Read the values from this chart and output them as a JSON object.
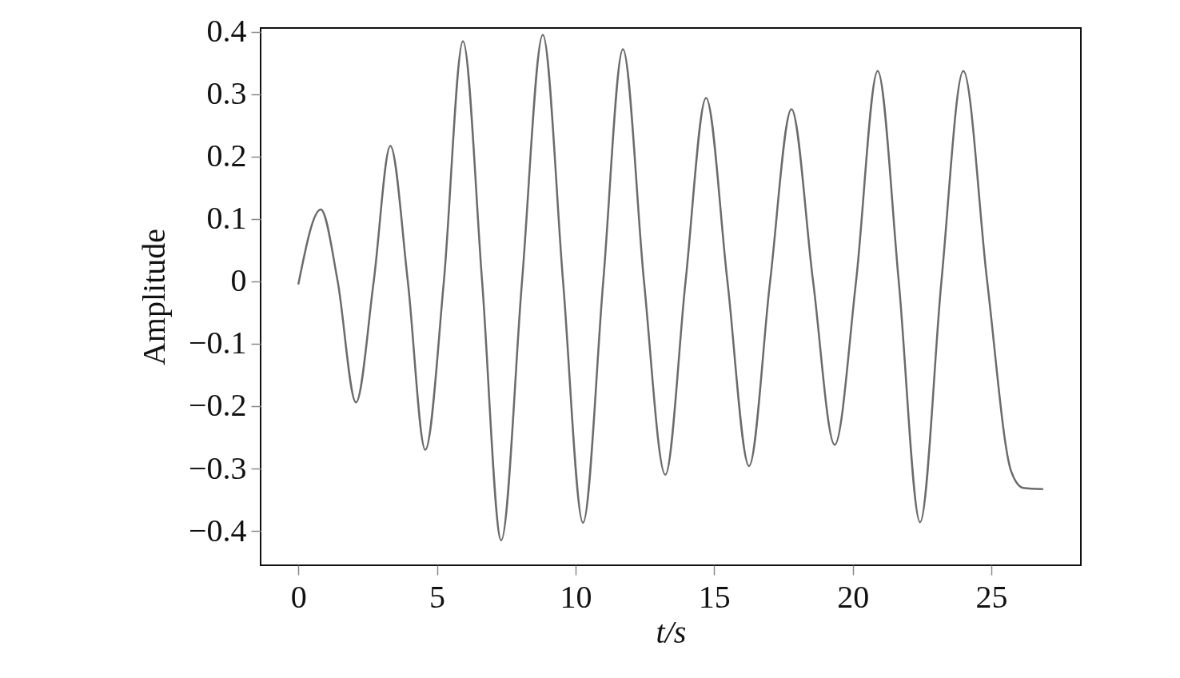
{
  "chart_data": {
    "type": "line",
    "xlabel": "t/s",
    "ylabel": "Amplitude",
    "x": [
      0,
      0.81,
      1.42,
      2.08,
      2.72,
      3.32,
      3.95,
      4.58,
      5.25,
      5.94,
      6.63,
      7.32,
      8.07,
      8.82,
      9.55,
      10.27,
      11.0,
      11.71,
      12.47,
      13.24,
      13.97,
      14.71,
      15.48,
      16.26,
      17.02,
      17.79,
      18.57,
      19.35,
      20.12,
      20.9,
      21.66,
      22.43,
      23.2,
      23.99,
      24.85,
      25.72,
      26.15,
      26.87
    ],
    "series": [
      {
        "color": "#6b6b6b",
        "values": [
          -0.005,
          0.115,
          0,
          -0.194,
          0,
          0.217,
          0,
          -0.27,
          0,
          0.385,
          0,
          -0.415,
          0,
          0.395,
          0,
          -0.387,
          0,
          0.372,
          0,
          -0.31,
          0,
          0.294,
          0,
          -0.296,
          0,
          0.276,
          0,
          -0.262,
          0,
          0.337,
          0,
          -0.386,
          0,
          0.337,
          0,
          -0.305,
          -0.331,
          -0.333
        ]
      }
    ],
    "xlim": [
      -1.36,
      28.23
    ],
    "ylim": [
      -0.455,
      0.406
    ],
    "xticks": [
      0,
      5,
      10,
      15,
      20,
      25
    ],
    "yticks": [
      {
        "value": -0.4,
        "label": "−0.4"
      },
      {
        "value": -0.3,
        "label": "−0.3"
      },
      {
        "value": -0.2,
        "label": "−0.2"
      },
      {
        "value": -0.1,
        "label": "−0.1"
      },
      0,
      0.1,
      0.2,
      0.3,
      0.4
    ],
    "grid": false
  }
}
